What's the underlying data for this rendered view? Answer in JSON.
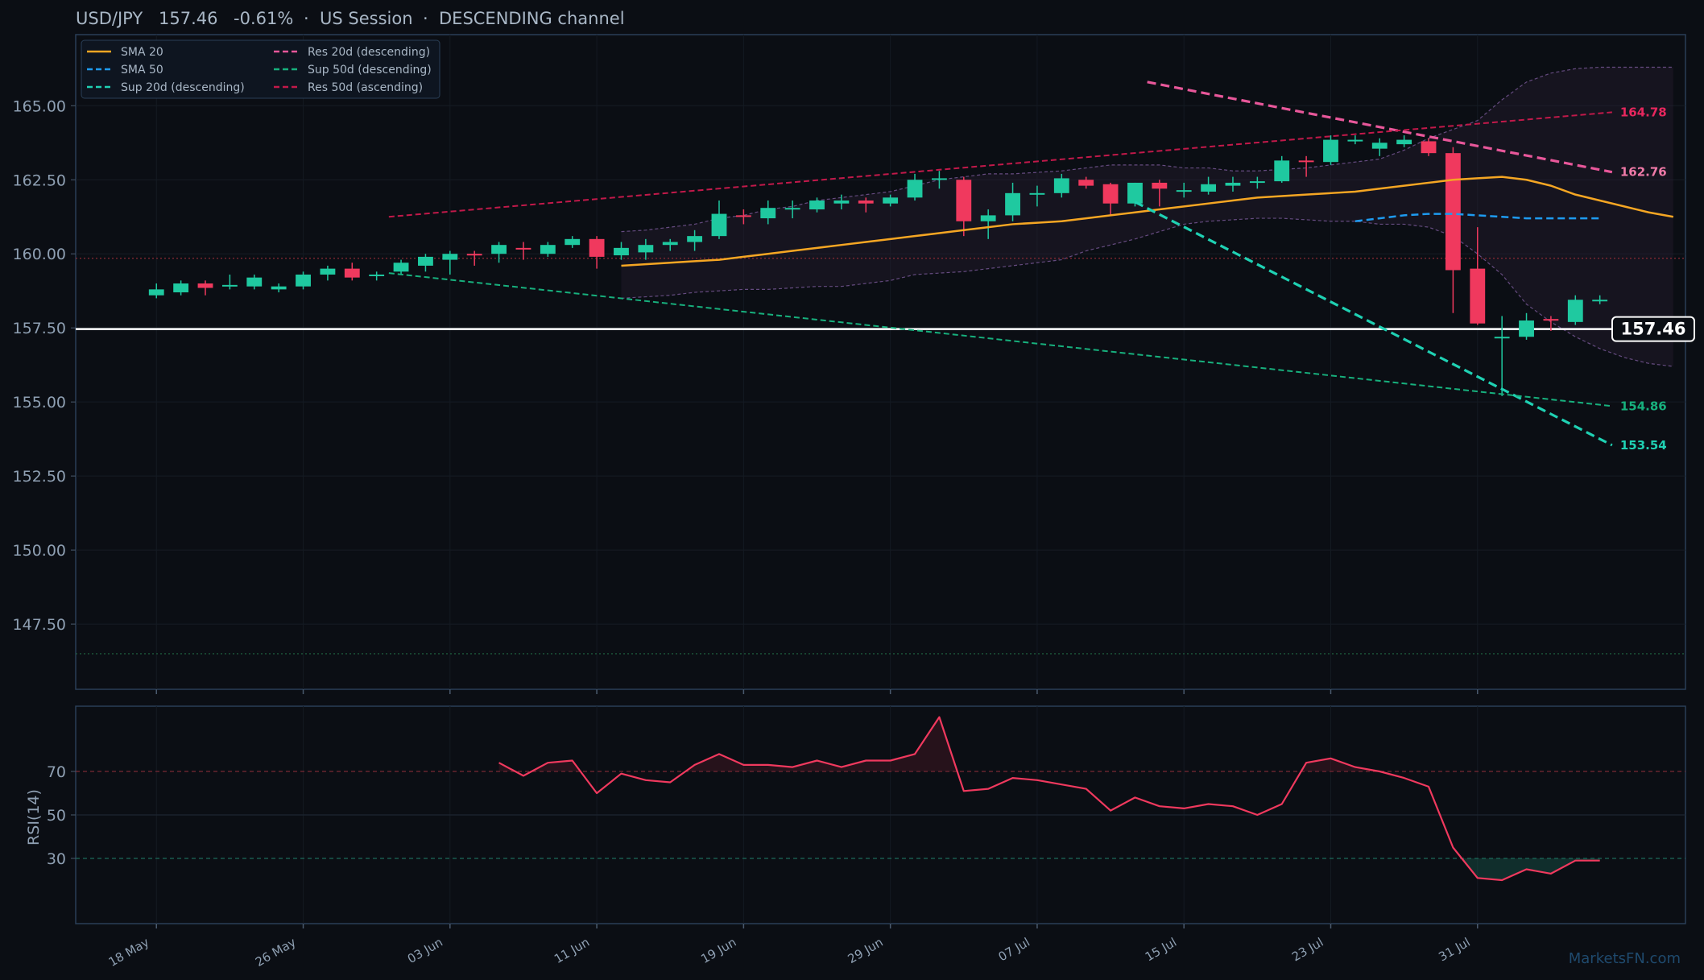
{
  "header": {
    "symbol": "USD/JPY",
    "price": "157.46",
    "change": "-0.61%",
    "session": "US Session",
    "channel": "DESCENDING channel",
    "separator": "·"
  },
  "watermark": "MarketsFN.com",
  "current_price_label": "157.46",
  "colors": {
    "background": "#0b0e14",
    "panel_border": "#2a3f57",
    "up": "#1fc9a0",
    "down": "#f0395e",
    "sma20": "#f5a623",
    "sma50": "#1e9bf0",
    "res20": "#e8579a",
    "sup20": "#1fd1b3",
    "sup50": "#17b07d",
    "res50": "#c2194a",
    "rsi_line": "#f0395e",
    "price_line": "#ffffff",
    "bands": "#7a5a9a"
  },
  "legend": [
    {
      "label": "SMA 20",
      "color": "#f5a623",
      "style": "solid"
    },
    {
      "label": "SMA 50",
      "color": "#1e9bf0",
      "style": "dashed"
    },
    {
      "label": "Sup 20d (descending)",
      "color": "#1fd1b3",
      "style": "dashed"
    },
    {
      "label": "Res 20d (descending)",
      "color": "#e8579a",
      "style": "dashed"
    },
    {
      "label": "Sup 50d (descending)",
      "color": "#17b07d",
      "style": "dashed"
    },
    {
      "label": "Res 50d (ascending)",
      "color": "#c2194a",
      "style": "dashed"
    }
  ],
  "level_labels": [
    {
      "text": "164.78",
      "value": 164.78,
      "color": "#e8275e"
    },
    {
      "text": "162.76",
      "value": 162.76,
      "color": "#f07aa8"
    },
    {
      "text": "154.86",
      "value": 154.86,
      "color": "#17b07d"
    },
    {
      "text": "153.54",
      "value": 153.54,
      "color": "#1fd1b3"
    }
  ],
  "chart_data": {
    "type": "candlestick",
    "title": "USD/JPY   157.46   -0.61%  ·  US Session  ·  DESCENDING channel",
    "x_tick_labels": [
      "18 May",
      "26 May",
      "03 Jun",
      "11 Jun",
      "19 Jun",
      "29 Jun",
      "07 Jul",
      "15 Jul",
      "23 Jul",
      "31 Jul"
    ],
    "x_tick_index": [
      0,
      6,
      12,
      18,
      24,
      30,
      36,
      42,
      48,
      54
    ],
    "y_ticks": [
      "147.50",
      "150.00",
      "152.50",
      "155.00",
      "157.50",
      "160.00",
      "162.50",
      "165.00"
    ],
    "y_tick_values": [
      147.5,
      150.0,
      152.5,
      155.0,
      157.5,
      160.0,
      162.5,
      165.0
    ],
    "ylim": [
      145.3,
      167.4
    ],
    "xlim": [
      -3.3,
      62.5
    ],
    "current_price": 157.46,
    "dotted_level": 159.85,
    "bottom_dotted_level": 146.5,
    "candles": [
      {
        "o": 158.6,
        "h": 159.0,
        "l": 158.5,
        "c": 158.8
      },
      {
        "o": 158.7,
        "h": 159.1,
        "l": 158.6,
        "c": 159.0
      },
      {
        "o": 159.0,
        "h": 159.1,
        "l": 158.6,
        "c": 158.85
      },
      {
        "o": 158.9,
        "h": 159.3,
        "l": 158.8,
        "c": 158.95
      },
      {
        "o": 158.9,
        "h": 159.3,
        "l": 158.8,
        "c": 159.2
      },
      {
        "o": 158.8,
        "h": 159.0,
        "l": 158.7,
        "c": 158.9
      },
      {
        "o": 158.9,
        "h": 159.4,
        "l": 158.8,
        "c": 159.3
      },
      {
        "o": 159.3,
        "h": 159.6,
        "l": 159.1,
        "c": 159.5
      },
      {
        "o": 159.5,
        "h": 159.7,
        "l": 159.1,
        "c": 159.2
      },
      {
        "o": 159.25,
        "h": 159.4,
        "l": 159.1,
        "c": 159.3
      },
      {
        "o": 159.4,
        "h": 159.8,
        "l": 159.3,
        "c": 159.7
      },
      {
        "o": 159.6,
        "h": 160.0,
        "l": 159.4,
        "c": 159.9
      },
      {
        "o": 159.8,
        "h": 160.1,
        "l": 159.3,
        "c": 160.0
      },
      {
        "o": 160.0,
        "h": 160.1,
        "l": 159.6,
        "c": 159.95
      },
      {
        "o": 160.0,
        "h": 160.4,
        "l": 159.7,
        "c": 160.3
      },
      {
        "o": 160.2,
        "h": 160.4,
        "l": 159.8,
        "c": 160.15
      },
      {
        "o": 160.0,
        "h": 160.4,
        "l": 159.9,
        "c": 160.3
      },
      {
        "o": 160.3,
        "h": 160.6,
        "l": 160.2,
        "c": 160.5
      },
      {
        "o": 160.5,
        "h": 160.6,
        "l": 159.5,
        "c": 159.9
      },
      {
        "o": 159.95,
        "h": 160.4,
        "l": 159.8,
        "c": 160.2
      },
      {
        "o": 160.05,
        "h": 160.5,
        "l": 159.8,
        "c": 160.3
      },
      {
        "o": 160.3,
        "h": 160.5,
        "l": 160.1,
        "c": 160.4
      },
      {
        "o": 160.4,
        "h": 160.8,
        "l": 160.1,
        "c": 160.6
      },
      {
        "o": 160.6,
        "h": 161.8,
        "l": 160.5,
        "c": 161.35
      },
      {
        "o": 161.3,
        "h": 161.5,
        "l": 161.0,
        "c": 161.25
      },
      {
        "o": 161.2,
        "h": 161.8,
        "l": 161.0,
        "c": 161.55
      },
      {
        "o": 161.5,
        "h": 161.8,
        "l": 161.2,
        "c": 161.55
      },
      {
        "o": 161.5,
        "h": 161.9,
        "l": 161.4,
        "c": 161.8
      },
      {
        "o": 161.7,
        "h": 162.0,
        "l": 161.5,
        "c": 161.8
      },
      {
        "o": 161.8,
        "h": 161.9,
        "l": 161.4,
        "c": 161.7
      },
      {
        "o": 161.7,
        "h": 162.0,
        "l": 161.6,
        "c": 161.9
      },
      {
        "o": 161.9,
        "h": 162.7,
        "l": 161.8,
        "c": 162.5
      },
      {
        "o": 162.5,
        "h": 162.8,
        "l": 162.2,
        "c": 162.55
      },
      {
        "o": 162.5,
        "h": 162.6,
        "l": 160.6,
        "c": 161.1
      },
      {
        "o": 161.1,
        "h": 161.5,
        "l": 160.5,
        "c": 161.3
      },
      {
        "o": 161.3,
        "h": 162.4,
        "l": 161.1,
        "c": 162.05
      },
      {
        "o": 162.0,
        "h": 162.3,
        "l": 161.6,
        "c": 162.05
      },
      {
        "o": 162.05,
        "h": 162.7,
        "l": 161.9,
        "c": 162.55
      },
      {
        "o": 162.5,
        "h": 162.6,
        "l": 162.2,
        "c": 162.3
      },
      {
        "o": 162.35,
        "h": 162.4,
        "l": 161.3,
        "c": 161.7
      },
      {
        "o": 161.7,
        "h": 162.4,
        "l": 161.6,
        "c": 162.4
      },
      {
        "o": 162.4,
        "h": 162.5,
        "l": 161.6,
        "c": 162.2
      },
      {
        "o": 162.1,
        "h": 162.4,
        "l": 161.9,
        "c": 162.15
      },
      {
        "o": 162.1,
        "h": 162.6,
        "l": 162.0,
        "c": 162.35
      },
      {
        "o": 162.3,
        "h": 162.6,
        "l": 162.1,
        "c": 162.4
      },
      {
        "o": 162.4,
        "h": 162.6,
        "l": 162.2,
        "c": 162.45
      },
      {
        "o": 162.45,
        "h": 163.3,
        "l": 162.4,
        "c": 163.15
      },
      {
        "o": 163.15,
        "h": 163.3,
        "l": 162.6,
        "c": 163.1
      },
      {
        "o": 163.1,
        "h": 164.0,
        "l": 163.0,
        "c": 163.85
      },
      {
        "o": 163.8,
        "h": 164.0,
        "l": 163.7,
        "c": 163.85
      },
      {
        "o": 163.55,
        "h": 163.9,
        "l": 163.3,
        "c": 163.75
      },
      {
        "o": 163.7,
        "h": 164.0,
        "l": 163.6,
        "c": 163.85
      },
      {
        "o": 163.8,
        "h": 163.9,
        "l": 163.3,
        "c": 163.4
      },
      {
        "o": 163.4,
        "h": 163.6,
        "l": 158.0,
        "c": 159.45
      },
      {
        "o": 159.5,
        "h": 160.9,
        "l": 157.6,
        "c": 157.65
      },
      {
        "o": 157.2,
        "h": 157.9,
        "l": 155.2,
        "c": 157.2
      },
      {
        "o": 157.2,
        "h": 158.0,
        "l": 157.1,
        "c": 157.75
      },
      {
        "o": 157.8,
        "h": 157.9,
        "l": 157.4,
        "c": 157.75
      },
      {
        "o": 157.7,
        "h": 158.6,
        "l": 157.6,
        "c": 158.45
      },
      {
        "o": 158.4,
        "h": 158.6,
        "l": 158.3,
        "c": 158.45
      }
    ],
    "sma20": {
      "start": 19,
      "values": [
        159.6,
        159.65,
        159.7,
        159.75,
        159.8,
        159.9,
        160.0,
        160.1,
        160.2,
        160.3,
        160.4,
        160.5,
        160.6,
        160.7,
        160.8,
        160.9,
        161.0,
        161.05,
        161.1,
        161.2,
        161.3,
        161.4,
        161.5,
        161.6,
        161.7,
        161.8,
        161.9,
        161.95,
        162.0,
        162.05,
        162.1,
        162.2,
        162.3,
        162.4,
        162.5,
        162.55,
        162.6,
        162.5,
        162.3,
        162.0,
        161.8,
        161.6,
        161.4,
        161.25
      ]
    },
    "sma50": {
      "start": 49,
      "values": [
        161.1,
        161.2,
        161.3,
        161.35,
        161.35,
        161.3,
        161.25,
        161.2,
        161.2,
        161.2,
        161.2
      ]
    },
    "upper_band": {
      "start": 19,
      "values": [
        160.75,
        160.8,
        160.9,
        161.0,
        161.2,
        161.3,
        161.5,
        161.6,
        161.8,
        161.9,
        162.0,
        162.1,
        162.3,
        162.5,
        162.6,
        162.7,
        162.7,
        162.75,
        162.8,
        162.9,
        163.0,
        163.0,
        163.0,
        162.9,
        162.9,
        162.8,
        162.8,
        162.85,
        162.9,
        163.0,
        163.1,
        163.2,
        163.5,
        163.9,
        164.2,
        164.5,
        165.2,
        165.8,
        166.1,
        166.25,
        166.3,
        166.3,
        166.3,
        166.3
      ]
    },
    "lower_band": {
      "start": 19,
      "values": [
        158.5,
        158.55,
        158.6,
        158.7,
        158.75,
        158.8,
        158.8,
        158.85,
        158.9,
        158.9,
        159.0,
        159.1,
        159.3,
        159.35,
        159.4,
        159.5,
        159.6,
        159.7,
        159.8,
        160.1,
        160.3,
        160.5,
        160.75,
        161.0,
        161.1,
        161.15,
        161.2,
        161.2,
        161.15,
        161.1,
        161.1,
        161.0,
        161.0,
        160.9,
        160.6,
        160.0,
        159.3,
        158.3,
        157.7,
        157.2,
        156.8,
        156.5,
        156.3,
        156.2
      ]
    },
    "trendlines": [
      {
        "name": "Res 20d (descending)",
        "x0": 40.5,
        "y0": 165.8,
        "x1": 59.5,
        "y1": 162.76
      },
      {
        "name": "Sup 20d (descending)",
        "x0": 40.0,
        "y0": 161.75,
        "x1": 59.5,
        "y1": 153.54
      },
      {
        "name": "Sup 50d (descending)",
        "x0": 9.5,
        "y0": 159.35,
        "x1": 59.5,
        "y1": 154.86
      },
      {
        "name": "Res 50d (ascending)",
        "x0": 9.5,
        "y0": 161.25,
        "x1": 59.5,
        "y1": 164.78
      }
    ],
    "rsi": {
      "label": "RSI(14)",
      "y_ticks": [
        "30",
        "50",
        "70"
      ],
      "y_tick_values": [
        30,
        50,
        70
      ],
      "ylim": [
        0,
        100
      ],
      "start": 14,
      "values": [
        74,
        68,
        74,
        75,
        60,
        69,
        66,
        65,
        73,
        78,
        73,
        73,
        72,
        75,
        72,
        75,
        75,
        78,
        95,
        61,
        62,
        67,
        66,
        64,
        62,
        52,
        58,
        54,
        53,
        55,
        54,
        50,
        55,
        74,
        76,
        72,
        70,
        67,
        63,
        35,
        21,
        20,
        25,
        23,
        29,
        29
      ]
    }
  }
}
